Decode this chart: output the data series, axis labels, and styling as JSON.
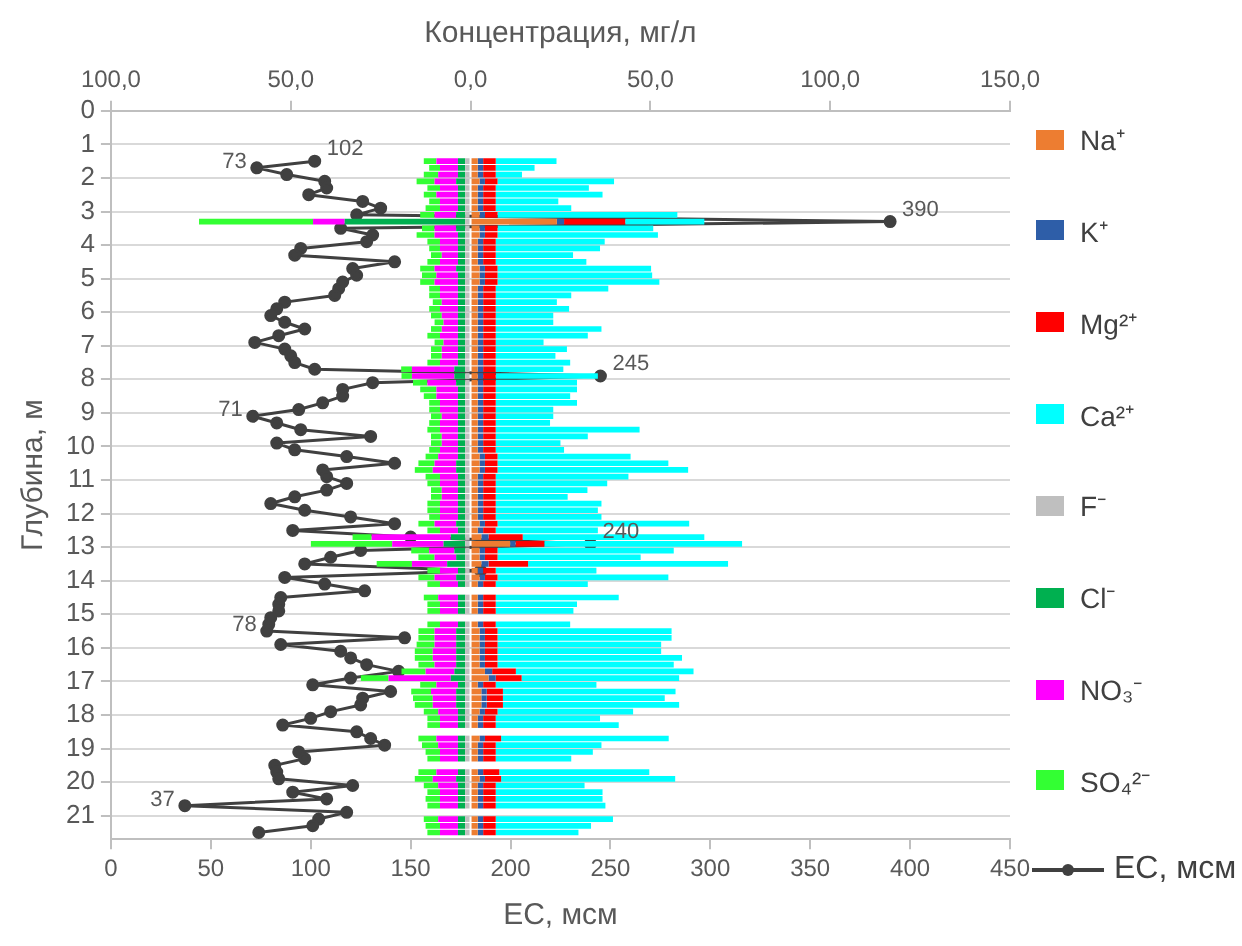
{
  "chart_data": {
    "type": "bar",
    "orientation": "horizontal",
    "stacked": true,
    "xlabel": "EC, мсм",
    "x2label": "Концентрация, мг/л",
    "ylabel": "Глубина, м",
    "xlim": [
      0,
      450
    ],
    "xticks": [
      0,
      50,
      100,
      150,
      200,
      250,
      300,
      350,
      400,
      450
    ],
    "x2lim": [
      -100,
      150
    ],
    "x2ticks": [
      {
        "value": -100,
        "label": "100,0"
      },
      {
        "value": -50,
        "label": "50,0"
      },
      {
        "value": 0,
        "label": "0,0"
      },
      {
        "value": 50,
        "label": "50,0"
      },
      {
        "value": 100,
        "label": "100,0"
      },
      {
        "value": 150,
        "label": "150,0"
      }
    ],
    "ylim": [
      21.7,
      0
    ],
    "yticks": [
      0,
      1,
      2,
      3,
      4,
      5,
      6,
      7,
      8,
      9,
      10,
      11,
      12,
      13,
      14,
      15,
      16,
      17,
      18,
      19,
      20,
      21
    ],
    "grid": "y",
    "legend": "right",
    "marker": "circle",
    "x": [
      1.5,
      1.7,
      1.9,
      2.1,
      2.3,
      2.5,
      2.7,
      2.9,
      3.1,
      3.3,
      3.5,
      3.7,
      3.9,
      4.1,
      4.3,
      4.5,
      4.7,
      4.9,
      5.1,
      5.3,
      5.5,
      5.7,
      5.9,
      6.1,
      6.3,
      6.5,
      6.7,
      6.9,
      7.1,
      7.3,
      7.5,
      7.7,
      7.9,
      8.1,
      8.3,
      8.5,
      8.7,
      8.9,
      9.1,
      9.3,
      9.5,
      9.7,
      9.9,
      10.1,
      10.3,
      10.5,
      10.7,
      10.9,
      11.1,
      11.3,
      11.5,
      11.7,
      11.9,
      12.1,
      12.3,
      12.5,
      12.7,
      12.9,
      13.1,
      13.3,
      13.5,
      13.7,
      13.9,
      14.1,
      14.3,
      14.5,
      14.7,
      14.9,
      15.1,
      15.3,
      15.5,
      15.7,
      15.9,
      16.1,
      16.3,
      16.5,
      16.7,
      16.9,
      17.1,
      17.3,
      17.5,
      17.7,
      17.9,
      18.1,
      18.3,
      18.5,
      18.7,
      18.9,
      19.1,
      19.3,
      19.5,
      19.7,
      19.9,
      20.1,
      20.3,
      20.5,
      20.7,
      20.9,
      21.1,
      21.3,
      21.5
    ],
    "series": [
      {
        "name": "Na⁺",
        "color": "#ed7d31",
        "axis": "x2",
        "values": [
          2,
          2,
          2,
          2.5,
          2,
          2,
          2,
          2,
          2.5,
          24,
          2.5,
          2.5,
          2,
          2,
          2,
          2,
          2.5,
          2.5,
          2.5,
          2,
          2,
          2,
          2,
          2,
          2,
          2,
          2,
          2,
          2,
          2,
          2,
          2,
          2,
          2,
          2,
          2,
          2,
          2,
          2,
          2,
          2,
          2,
          2,
          2,
          2.5,
          2.5,
          2.5,
          2,
          2,
          2,
          2,
          2,
          2,
          2,
          2.5,
          2,
          3,
          11,
          2.5,
          2.5,
          3,
          2,
          2.5,
          2,
          null,
          2,
          2,
          2,
          null,
          2,
          2.5,
          2.5,
          2.5,
          2.5,
          2.5,
          2.5,
          4,
          5,
          2,
          3,
          3,
          3,
          2.5,
          2,
          2,
          null,
          2.5,
          2,
          2,
          2,
          null,
          2,
          2.5,
          2,
          2,
          2,
          2,
          null,
          2,
          2,
          2
        ]
      },
      {
        "name": "K⁺",
        "color": "#2e5ea8",
        "axis": "x2",
        "values": [
          1.5,
          1.5,
          1.5,
          1.5,
          1.5,
          1.5,
          1.5,
          1.5,
          1.5,
          2,
          1.5,
          1.5,
          1.5,
          1.5,
          1.5,
          1.5,
          1.5,
          1.5,
          1.5,
          1.5,
          1.5,
          1.5,
          1.5,
          1.5,
          1.5,
          1.5,
          1.5,
          1.5,
          1.5,
          1.5,
          1.5,
          1.5,
          1.5,
          1.5,
          1.5,
          1.5,
          1.5,
          1.5,
          1.5,
          1.5,
          1.5,
          1.5,
          1.5,
          1.5,
          1.5,
          1.5,
          1.5,
          1.5,
          1.5,
          1.5,
          1.5,
          1.5,
          1.5,
          1.5,
          1.5,
          1.5,
          2,
          1.5,
          1.5,
          1.5,
          2,
          1.5,
          1.5,
          1.5,
          null,
          1.5,
          1.5,
          1.5,
          null,
          1.5,
          1.5,
          1.5,
          1.5,
          1.5,
          1.5,
          1.5,
          2,
          2,
          1.5,
          1.5,
          1.5,
          1.5,
          1.5,
          1.5,
          1.5,
          null,
          1.5,
          1.5,
          1.5,
          1.5,
          null,
          1.5,
          1.5,
          1.5,
          1.5,
          1.5,
          1.5,
          null,
          1.5,
          1.5,
          1.5
        ]
      },
      {
        "name": "Mg²⁺",
        "color": "#ff0000",
        "axis": "x2",
        "values": [
          3.5,
          3.5,
          3.5,
          3.5,
          3.5,
          3.5,
          3.5,
          3.5,
          3.5,
          17,
          3.5,
          3.5,
          3.5,
          3.5,
          3.5,
          3.5,
          3.5,
          3.5,
          3.5,
          3.5,
          3.5,
          3.5,
          3.5,
          3.5,
          3.5,
          3.5,
          3.5,
          3.5,
          3.5,
          3.5,
          3.5,
          3.5,
          3.5,
          3.5,
          3.5,
          3.5,
          3.5,
          3.5,
          3.5,
          3.5,
          3.5,
          3.5,
          3.5,
          3.5,
          3.5,
          3.5,
          3.5,
          3.5,
          3.5,
          3.5,
          3.5,
          3.5,
          3.5,
          3.5,
          3.5,
          3.5,
          9.5,
          8,
          3.5,
          3.5,
          11,
          3.5,
          3.5,
          3.5,
          null,
          3.5,
          3.5,
          3.5,
          null,
          3.5,
          3.5,
          3.5,
          3.5,
          3.5,
          3.5,
          3.5,
          6.6,
          7.2,
          3.5,
          4.5,
          4.5,
          4.5,
          3.5,
          3.5,
          3.5,
          null,
          4.5,
          3.5,
          3.5,
          3.5,
          null,
          4.5,
          4.5,
          3.5,
          3.5,
          3.5,
          3.5,
          null,
          3.5,
          3.5,
          3.5
        ]
      },
      {
        "name": "Ca²⁺",
        "color": "#00ffff",
        "axis": "x2",
        "values": [
          16.9,
          10.8,
          7.3,
          32.4,
          25.9,
          29.7,
          17.4,
          21,
          50,
          22,
          43.3,
          44.6,
          30.3,
          29,
          21.5,
          25.2,
          42.7,
          43,
          45,
          31.3,
          21,
          17,
          20.4,
          16,
          16,
          29.4,
          25.6,
          13.3,
          19.8,
          16.6,
          20.7,
          18.8,
          28.4,
          22.6,
          22.6,
          20.7,
          22.6,
          16,
          16,
          15.1,
          40,
          25.6,
          18,
          19,
          37,
          47.5,
          53,
          36.9,
          31,
          25.5,
          20,
          29.4,
          28.4,
          29.4,
          53.3,
          28.4,
          50.5,
          55,
          49,
          39.8,
          55.6,
          28,
          47.5,
          25.6,
          null,
          34.2,
          22.6,
          21.6,
          null,
          20.7,
          48.4,
          48.4,
          45.5,
          45.5,
          51.3,
          49,
          49.4,
          43.8,
          28,
          48,
          45,
          49,
          37.7,
          29,
          34.2,
          null,
          46.6,
          29.4,
          27,
          21,
          null,
          41.7,
          48.4,
          24.7,
          29.7,
          29.7,
          30.5,
          null,
          32.6,
          26.5,
          23
        ]
      },
      {
        "name": "F⁻",
        "color": "#bfbfbf",
        "axis": "x2",
        "values": [
          -1.5,
          -1.5,
          -1.5,
          -1.5,
          -1.5,
          -1.5,
          -1.5,
          -1.5,
          -1.5,
          -1.5,
          -1.5,
          -1.5,
          -1.5,
          -1.5,
          -1.5,
          -1.5,
          -1.5,
          -1.5,
          -1.5,
          -1.5,
          -1.5,
          -1.5,
          -1.5,
          -1.5,
          -1.5,
          -1.5,
          -1.5,
          -1.5,
          -1.5,
          -1.5,
          -1.5,
          -1.5,
          -1.5,
          -1.5,
          -1.5,
          -1.5,
          -1.5,
          -1.5,
          -1.5,
          -1.5,
          -1.5,
          -1.5,
          -1.5,
          -1.5,
          -1.5,
          -1.5,
          -1.5,
          -1.5,
          -1.5,
          -1.5,
          -1.5,
          -1.5,
          -1.5,
          -1.5,
          -1.5,
          -1.5,
          -1.5,
          -1.5,
          -1.5,
          -1.5,
          -1.5,
          -1.5,
          -1.5,
          -1.5,
          null,
          -1.5,
          -1.5,
          -1.5,
          null,
          -1.5,
          -1.5,
          -1.5,
          -1.5,
          -1.5,
          -1.5,
          -1.5,
          -1.5,
          -1.5,
          -1.5,
          -1.5,
          -1.5,
          -1.5,
          -1.5,
          -1.5,
          -1.5,
          null,
          -1.5,
          -1.5,
          -1.5,
          -1.5,
          null,
          -1.5,
          -1.5,
          -1.5,
          -1.5,
          -1.5,
          -1.5,
          null,
          -1.5,
          -1.5,
          -1.5
        ]
      },
      {
        "name": "Cl⁻",
        "color": "#00b050",
        "axis": "x2",
        "values": [
          -2,
          -2,
          -2,
          -2.5,
          -2,
          -2,
          -2,
          -2,
          -2.5,
          -33.5,
          -2.5,
          -2,
          -2,
          -2,
          -2,
          -2,
          -2.5,
          -2,
          -2,
          -2,
          -2,
          -2,
          -2,
          -2,
          -2,
          -2,
          -2,
          -2,
          -2,
          -2,
          -2,
          -3,
          -3,
          -2.5,
          -2,
          -2,
          -2,
          -2,
          -2,
          -2,
          -2,
          -2,
          -2,
          -2,
          -2,
          -2.5,
          -2.5,
          -2,
          -2,
          -2,
          -2,
          -2,
          -2,
          -2,
          -2.5,
          -2,
          -4,
          -6,
          -3,
          -2.5,
          -5,
          -2,
          -2.5,
          -2,
          null,
          -2,
          -2,
          -2,
          null,
          -2,
          -2.5,
          -2.5,
          -2.5,
          -2.5,
          -2.5,
          -2.5,
          -3,
          -4,
          -2,
          -2.5,
          -2.5,
          -2.5,
          -2,
          -2,
          -2,
          null,
          -2,
          -2,
          -2,
          -2,
          null,
          -2,
          -2.5,
          -2,
          -2,
          -2,
          -2,
          null,
          -2,
          -2,
          -2
        ]
      },
      {
        "name": "NO₃⁻",
        "color": "#ff00ff",
        "axis": "x2",
        "values": [
          -6,
          -5,
          -5.5,
          -6,
          -5,
          -6,
          -5,
          -5,
          -6,
          -8.8,
          -6,
          -6.5,
          -5,
          -5,
          -4.5,
          -5,
          -6,
          -6,
          -6.5,
          -5,
          -5,
          -4.5,
          -5,
          -4.5,
          -4,
          -4.5,
          -5,
          -4,
          -4.5,
          -4.5,
          -5,
          -11.8,
          -11.8,
          -8,
          -6,
          -6,
          -5,
          -5,
          -4.5,
          -5,
          -5,
          -4.5,
          -4.5,
          -5,
          -5.5,
          -6,
          -6.5,
          -5,
          -5,
          -4.5,
          -4.5,
          -5,
          -5,
          -5,
          -6,
          -5,
          -22,
          -14.3,
          -7,
          -6,
          -9.8,
          -5,
          -6,
          -5,
          null,
          -5.5,
          -5,
          -5,
          null,
          -5,
          -6,
          -6,
          -6,
          -6.5,
          -6.5,
          -6,
          -8,
          -17.3,
          -6,
          -7,
          -6.5,
          -6.5,
          -5.5,
          -5,
          -5,
          null,
          -6,
          -5.5,
          -5,
          -5,
          null,
          -6,
          -6.5,
          -5.5,
          -5,
          -5,
          -5,
          null,
          -5.5,
          -5,
          -5
        ]
      },
      {
        "name": "SO₄²⁻",
        "color": "#33ff33",
        "axis": "x2",
        "values": [
          -3.5,
          -3,
          -4,
          -5,
          -3.5,
          -3.5,
          -3,
          -4,
          -4,
          -31.7,
          -3.5,
          -5,
          -3.5,
          -3,
          -3,
          -3.5,
          -4,
          -4,
          -4,
          -3,
          -3,
          -2.5,
          -3,
          -3,
          -2.5,
          -3,
          -3.5,
          -2.5,
          -3,
          -3,
          -3.5,
          -3,
          -2.9,
          -4,
          -4.5,
          -3.5,
          -3,
          -3,
          -3,
          -3,
          -3.5,
          -3,
          -3,
          -3,
          -3.5,
          -4.5,
          -5,
          -4,
          -3.5,
          -3,
          -3,
          -3.5,
          -3.5,
          -3,
          -4.5,
          -3.5,
          -5.3,
          -22.6,
          -5,
          -4.5,
          -9.8,
          -3.5,
          -4.5,
          -3.5,
          null,
          -4,
          -3.5,
          -3.5,
          null,
          -3.5,
          -4.5,
          -4.5,
          -5,
          -5,
          -5,
          -4.5,
          -6.7,
          -7.7,
          -4.5,
          -5.5,
          -5.5,
          -5,
          -4,
          -3.5,
          -3.5,
          null,
          -5,
          -4.5,
          -4,
          -3.5,
          null,
          -5,
          -5,
          -4,
          -3.5,
          -4,
          -3.5,
          null,
          -4,
          -4,
          -3.5
        ]
      },
      {
        "name": "EC, мсм",
        "type": "line",
        "color": "#404040",
        "values": [
          102,
          73,
          88,
          107,
          108,
          99,
          126,
          135,
          123,
          390,
          115,
          131,
          128,
          95,
          92,
          142,
          121,
          123,
          116,
          114,
          112,
          87,
          83,
          80,
          87,
          97,
          84,
          72,
          87,
          90,
          92,
          102,
          245,
          131,
          116,
          116,
          106,
          94,
          71,
          83,
          95,
          130,
          83,
          92,
          118,
          142,
          106,
          108,
          118,
          108,
          92,
          80,
          97,
          120,
          142,
          91,
          150,
          240,
          125,
          110,
          97,
          185,
          87,
          107,
          127,
          85,
          84,
          84,
          80,
          79,
          78,
          147,
          85,
          115,
          120,
          128,
          144,
          120,
          101,
          140,
          126,
          125,
          110,
          100,
          86,
          123,
          130,
          137,
          94,
          97,
          82,
          83,
          84,
          121,
          91,
          108,
          37,
          118,
          104,
          101,
          74
        ],
        "value_labels": [
          "102",
          "73",
          null,
          null,
          null,
          null,
          null,
          null,
          null,
          "390",
          null,
          null,
          null,
          null,
          null,
          null,
          null,
          null,
          null,
          null,
          null,
          null,
          null,
          null,
          null,
          null,
          null,
          null,
          null,
          null,
          null,
          null,
          "245",
          null,
          null,
          null,
          null,
          null,
          "71",
          null,
          null,
          null,
          null,
          null,
          null,
          null,
          null,
          null,
          null,
          null,
          null,
          null,
          null,
          null,
          null,
          null,
          null,
          "240",
          null,
          null,
          null,
          null,
          null,
          null,
          null,
          null,
          null,
          null,
          null,
          null,
          "78",
          null,
          null,
          null,
          null,
          null,
          null,
          null,
          null,
          null,
          null,
          null,
          null,
          null,
          null,
          null,
          null,
          null,
          null,
          null,
          null,
          null,
          null,
          null,
          null,
          null,
          "37",
          null,
          null,
          null,
          null
        ]
      }
    ]
  }
}
